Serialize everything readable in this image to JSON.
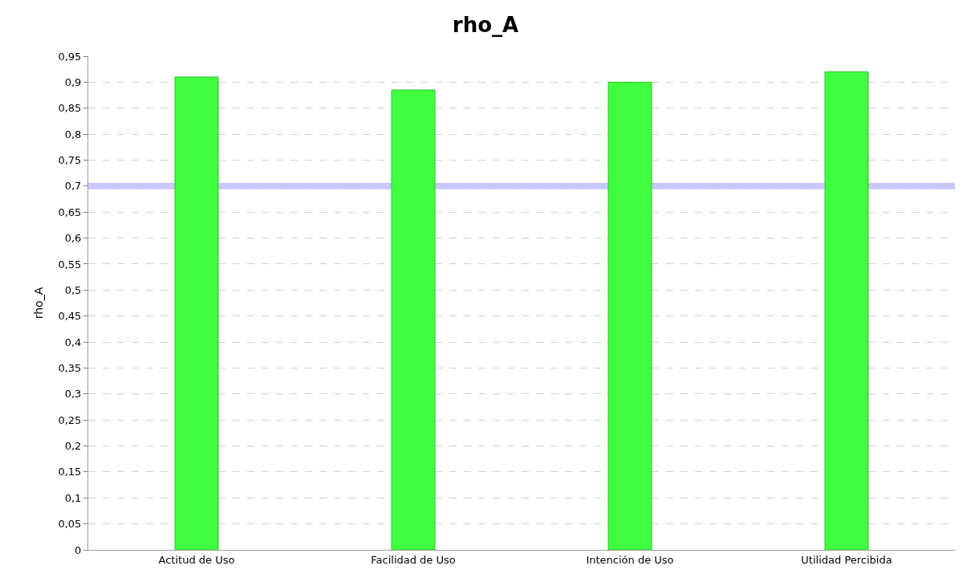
{
  "chart_data": {
    "type": "bar",
    "title": "rho_A",
    "ylabel": "rho_A",
    "categories": [
      "Actitud de Uso",
      "Facilidad de Uso",
      "Intención de Uso",
      "Utilidad Percibida"
    ],
    "values": [
      0.91,
      0.885,
      0.9,
      0.92
    ],
    "color": "#40ff40",
    "ylim": [
      0,
      0.95
    ],
    "yticks": [
      0,
      {
        "value": 0.05,
        "label": "0,05"
      },
      {
        "value": 0.1,
        "label": "0,1"
      },
      {
        "value": 0.15,
        "label": "0,15"
      },
      {
        "value": 0.2,
        "label": "0,2"
      },
      {
        "value": 0.25,
        "label": "0,25"
      },
      {
        "value": 0.3,
        "label": "0,3"
      },
      {
        "value": 0.35,
        "label": "0,35"
      },
      {
        "value": 0.4,
        "label": "0,4"
      },
      {
        "value": 0.45,
        "label": "0,45"
      },
      {
        "value": 0.5,
        "label": "0,5"
      },
      {
        "value": 0.55,
        "label": "0,55"
      },
      {
        "value": 0.6,
        "label": "0,6"
      },
      {
        "value": 0.65,
        "label": "0,65"
      },
      {
        "value": 0.7,
        "label": "0,7"
      },
      {
        "value": 0.75,
        "label": "0,75"
      },
      {
        "value": 0.8,
        "label": "0,8"
      },
      {
        "value": 0.85,
        "label": "0,85"
      },
      {
        "value": 0.9,
        "label": "0,9"
      },
      {
        "value": 0.95,
        "label": "0,95"
      }
    ],
    "ref_lines": [
      {
        "axis": "y",
        "value": 0.7,
        "color": "#c8c8ff"
      }
    ],
    "grid": "y"
  }
}
